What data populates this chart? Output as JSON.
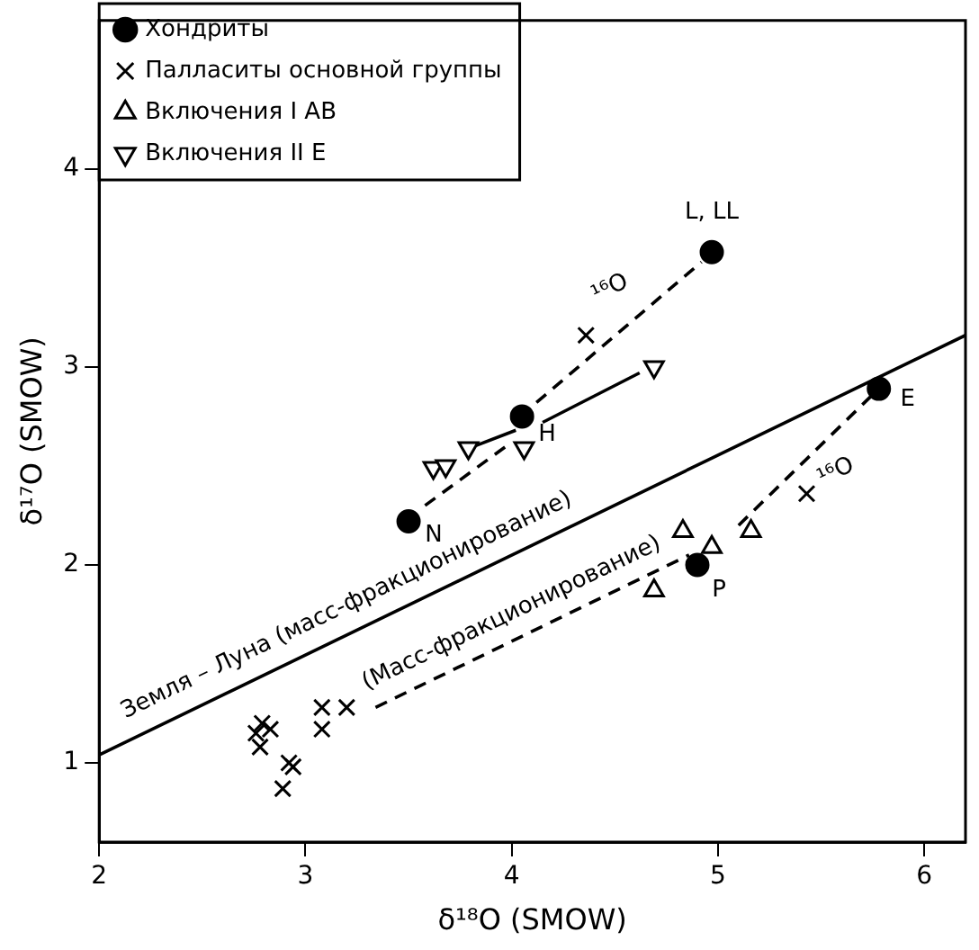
{
  "chart_data": {
    "type": "scatter",
    "xlabel": "δ¹⁸O (SMOW)",
    "ylabel": "δ¹⁷O (SMOW)",
    "xlim": [
      2,
      6.2
    ],
    "ylim": [
      0.6,
      4.75
    ],
    "xticks": [
      2,
      3,
      4,
      5,
      6
    ],
    "yticks": [
      1,
      2,
      3,
      4
    ],
    "grid": false,
    "legend": "top left",
    "series": [
      {
        "name": "Хондриты",
        "type": "scatter",
        "marker": "circle",
        "color": "#000000",
        "x": [
          4.97,
          4.05,
          3.5,
          5.78,
          4.9
        ],
        "values": [
          3.58,
          2.75,
          2.22,
          2.89,
          2.0
        ]
      },
      {
        "name": "Палласиты основной группы",
        "type": "scatter",
        "marker": "cross",
        "color": "#000000",
        "x": [
          4.36,
          5.43,
          2.79,
          2.83,
          2.78,
          2.76,
          2.92,
          2.94,
          2.89,
          3.08,
          3.08,
          3.2
        ],
        "values": [
          3.16,
          2.36,
          1.2,
          1.17,
          1.08,
          1.15,
          1.0,
          0.98,
          0.87,
          1.28,
          1.17,
          1.28
        ]
      },
      {
        "name": "Включения I AB",
        "type": "scatter",
        "marker": "triangle",
        "color": "#000000",
        "x": [
          4.83,
          4.97,
          5.16,
          4.69
        ],
        "values": [
          2.17,
          2.09,
          2.17,
          1.87
        ]
      },
      {
        "name": "Включения II E",
        "type": "scatter",
        "marker": "triangle-down",
        "color": "#000000",
        "x": [
          3.62,
          3.68,
          3.79,
          4.06,
          4.69
        ],
        "values": [
          2.49,
          2.5,
          2.59,
          2.59,
          3.0
        ]
      },
      {
        "type": "line",
        "line_style": "solid",
        "marker": "none",
        "color": "#000000",
        "x": [
          2,
          6.2
        ],
        "values": [
          1.04,
          3.16
        ]
      },
      {
        "type": "line",
        "line_style": "dashed",
        "marker": "none",
        "color": "#000000",
        "x": [
          4.12,
          4.92
        ],
        "values": [
          2.82,
          3.53
        ]
      },
      {
        "type": "line",
        "line_style": "dashed",
        "marker": "none",
        "color": "#000000",
        "x": [
          3.58,
          4.0
        ],
        "values": [
          2.3,
          2.62
        ]
      },
      {
        "type": "line",
        "line_style": "solid",
        "marker": "none",
        "color": "#000000",
        "x": [
          4.15,
          4.62
        ],
        "values": [
          2.72,
          2.97
        ]
      },
      {
        "type": "line",
        "line_style": "solid",
        "marker": "none",
        "color": "#000000",
        "x": [
          3.82,
          4.02
        ],
        "values": [
          2.6,
          2.68
        ]
      },
      {
        "type": "line",
        "line_style": "dashed",
        "marker": "none",
        "color": "#000000",
        "x": [
          3.34,
          4.86
        ],
        "values": [
          1.28,
          2.05
        ]
      },
      {
        "type": "line",
        "line_style": "dashed",
        "marker": "none",
        "color": "#000000",
        "x": [
          5.1,
          5.74
        ],
        "values": [
          2.2,
          2.85
        ]
      }
    ],
    "annotations": [
      {
        "text": "L, LL",
        "x": 4.97,
        "y": 3.58
      },
      {
        "text": "H",
        "x": 4.05,
        "y": 2.75
      },
      {
        "text": "N",
        "x": 3.5,
        "y": 2.22
      },
      {
        "text": "E",
        "x": 5.78,
        "y": 2.89
      },
      {
        "text": "P",
        "x": 4.9,
        "y": 2.0
      },
      {
        "text": "¹⁶O",
        "x": 4.6,
        "y": 3.25
      },
      {
        "text": "¹⁶O",
        "x": 5.45,
        "y": 2.56
      },
      {
        "text": "Земля – Луна (масс-фракционирование)",
        "x": 3.2,
        "y": 1.65
      },
      {
        "text": "(Масс-фракционирование)",
        "x": 4.0,
        "y": 1.61
      }
    ]
  }
}
